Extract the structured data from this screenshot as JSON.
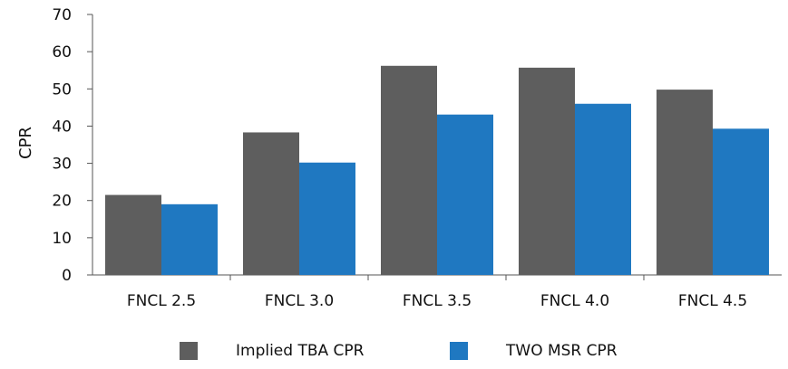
{
  "chart_data": {
    "type": "bar",
    "categories": [
      "FNCL 2.5",
      "FNCL 3.0",
      "FNCL 3.5",
      "FNCL 4.0",
      "FNCL 4.5"
    ],
    "series": [
      {
        "name": "Implied TBA CPR",
        "color": "#5e5e5e",
        "values": [
          21.5,
          38.3,
          56.2,
          55.7,
          49.8
        ]
      },
      {
        "name": "TWO MSR CPR",
        "color": "#1f78c1",
        "values": [
          19.0,
          30.2,
          43.1,
          46.0,
          39.3
        ]
      }
    ],
    "title": "",
    "xlabel": "",
    "ylabel": "CPR",
    "ylim": [
      0,
      70
    ],
    "yticks": [
      0,
      10,
      20,
      30,
      40,
      50,
      60,
      70
    ],
    "grid": false,
    "legend": "bottom-center"
  }
}
